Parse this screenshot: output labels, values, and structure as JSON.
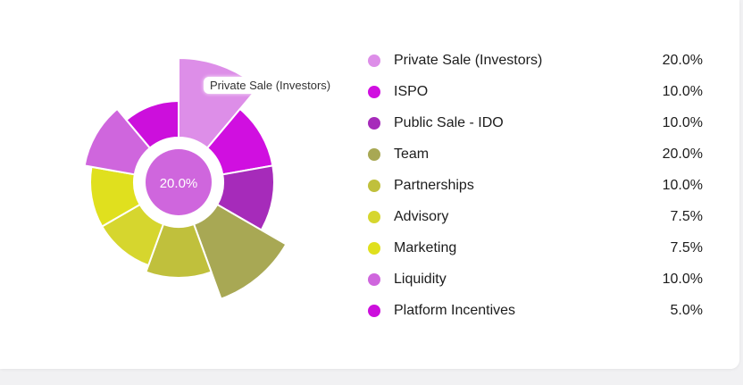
{
  "chart_data": {
    "type": "pie",
    "variant": "polar-area-with-center-hole",
    "categories": [
      "Private Sale (Investors)",
      "ISPO",
      "Public Sale - IDO",
      "Team",
      "Partnerships",
      "Advisory",
      "Marketing",
      "Liquidity",
      "Platform Incentives"
    ],
    "values": [
      20.0,
      10.0,
      10.0,
      20.0,
      10.0,
      7.5,
      7.5,
      10.0,
      5.0
    ],
    "value_labels": [
      "20.0%",
      "10.0%",
      "10.0%",
      "20.0%",
      "10.0%",
      "7.5%",
      "7.5%",
      "10.0%",
      "5.0%"
    ],
    "colors": [
      "#dd8ee8",
      "#d00fe0",
      "#a62bba",
      "#a8a854",
      "#c0c03c",
      "#d6d62e",
      "#e0e01e",
      "#cf66dd",
      "#cc0fdc"
    ],
    "highlighted_index": 0,
    "legend_position": "right",
    "center_label": "20.0%",
    "tooltip": "Private Sale (Investors)"
  }
}
